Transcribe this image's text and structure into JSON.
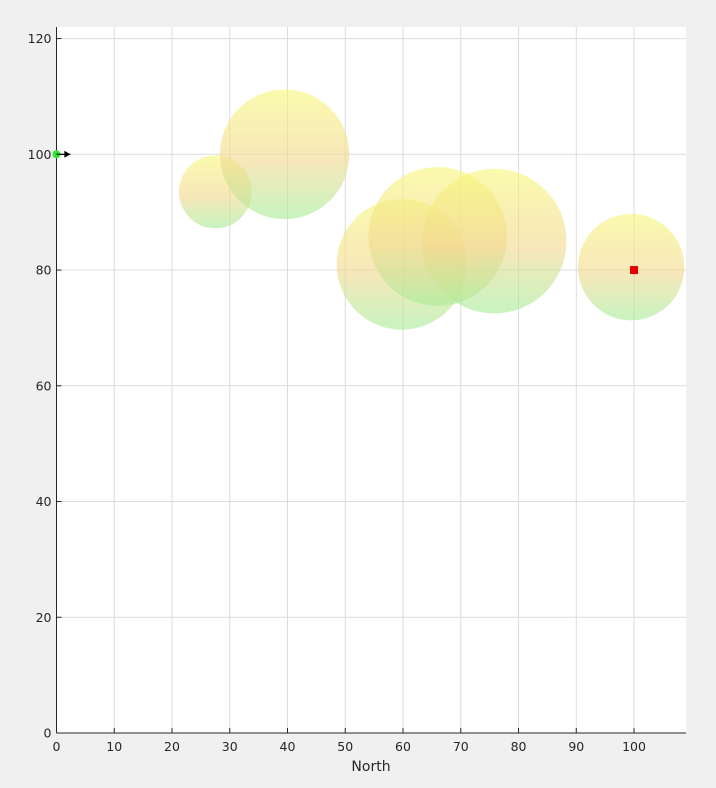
{
  "chart_data": {
    "type": "scatter",
    "title": "",
    "xlabel": "North",
    "ylabel": "",
    "xlim": [
      0,
      109
    ],
    "ylim": [
      0,
      122
    ],
    "xticks": [
      0,
      10,
      20,
      30,
      40,
      50,
      60,
      70,
      80,
      90,
      100
    ],
    "yticks": [
      0,
      20,
      40,
      60,
      80,
      100,
      120
    ],
    "grid": true,
    "legend": "none",
    "obstacles": [
      {
        "x": 27.5,
        "y": 93.5,
        "r": 6.3
      },
      {
        "x": 39.5,
        "y": 100.0,
        "r": 11.2
      },
      {
        "x": 59.8,
        "y": 81.0,
        "r": 11.3
      },
      {
        "x": 66.0,
        "y": 85.8,
        "r": 12.0
      },
      {
        "x": 75.8,
        "y": 85.0,
        "r": 12.5
      },
      {
        "x": 99.5,
        "y": 80.5,
        "r": 9.2
      }
    ],
    "start": {
      "x": 0,
      "y": 100
    },
    "goal": {
      "x": 100,
      "y": 80
    },
    "heading_arrow": {
      "x": 0,
      "y": 100,
      "dx": 2.4,
      "dy": 0
    }
  },
  "colors": {
    "grid": "#dcdcdc",
    "axis": "#262626",
    "start_marker": "#2ee62e",
    "goal_marker": "#e60000",
    "gradient_top": "#f7f77a",
    "gradient_mid": "#f2d98f",
    "gradient_bottom": "#a6ec99"
  }
}
